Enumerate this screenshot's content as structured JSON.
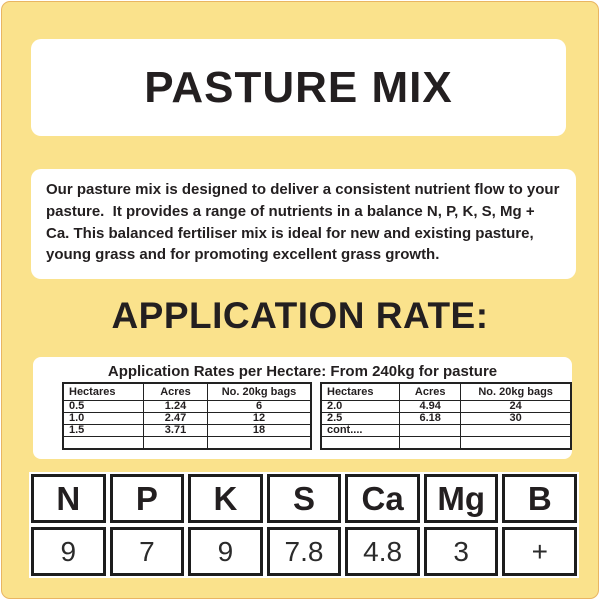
{
  "label": {
    "title": "PASTURE MIX",
    "description": "Our pasture mix is designed to deliver a consistent nutrient flow to your pasture.  It provides a range of nutrients in a balance N, P, K, S, Mg + Ca. This balanced fertiliser mix is ideal for new and existing pasture, young grass and for promoting excellent grass growth.",
    "application_rate_heading": "APPLICATION RATE:",
    "rates_subtitle": "Application Rates per Hectare: From 240kg for pasture"
  },
  "rate_tables": {
    "headers": [
      "Hectares",
      "Acres",
      "No. 20kg bags"
    ],
    "left_rows": [
      [
        "0.5",
        "1.24",
        "6"
      ],
      [
        "1.0",
        "2.47",
        "12"
      ],
      [
        "1.5",
        "3.71",
        "18"
      ],
      [
        "",
        "",
        ""
      ]
    ],
    "right_rows": [
      [
        "2.0",
        "4.94",
        "24"
      ],
      [
        "2.5",
        "6.18",
        "30"
      ],
      [
        "cont....",
        "",
        ""
      ],
      [
        "",
        "",
        ""
      ]
    ]
  },
  "nutrient_table": {
    "headers": [
      "N",
      "P",
      "K",
      "S",
      "Ca",
      "Mg",
      "B"
    ],
    "values": [
      "9",
      "7",
      "9",
      "7.8",
      "4.8",
      "3",
      "+"
    ]
  },
  "colors": {
    "sheet_yellow": "#fae28c",
    "sheet_border_orange": "#e9b562",
    "panel_white": "#ffffff",
    "text_black": "#231f20",
    "table_border_black": "#222222"
  }
}
